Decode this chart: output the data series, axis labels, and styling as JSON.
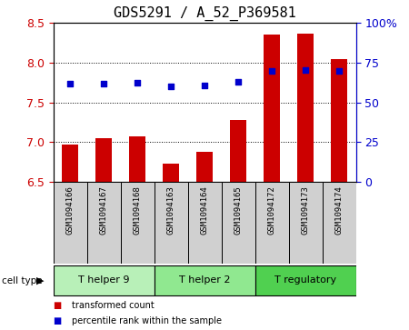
{
  "title": "GDS5291 / A_52_P369581",
  "samples": [
    "GSM1094166",
    "GSM1094167",
    "GSM1094168",
    "GSM1094163",
    "GSM1094164",
    "GSM1094165",
    "GSM1094172",
    "GSM1094173",
    "GSM1094174"
  ],
  "bar_values": [
    6.97,
    7.05,
    7.07,
    6.73,
    6.88,
    7.28,
    8.35,
    8.37,
    8.05
  ],
  "bar_bottom": 6.5,
  "scatter_values": [
    7.73,
    7.73,
    7.75,
    7.7,
    7.71,
    7.76,
    7.9,
    7.91,
    7.9
  ],
  "ylim": [
    6.5,
    8.5
  ],
  "yticks": [
    6.5,
    7.0,
    7.5,
    8.0,
    8.5
  ],
  "right_yticks": [
    0,
    25,
    50,
    75,
    100
  ],
  "right_ylabels": [
    "0",
    "25",
    "50",
    "75",
    "100%"
  ],
  "cell_groups": [
    {
      "label": "T helper 9",
      "start": 0,
      "end": 3,
      "color": "#b8f0b8"
    },
    {
      "label": "T helper 2",
      "start": 3,
      "end": 6,
      "color": "#90e890"
    },
    {
      "label": "T regulatory",
      "start": 6,
      "end": 9,
      "color": "#50d050"
    }
  ],
  "bar_color": "#cc0000",
  "scatter_color": "#0000cc",
  "background_color": "#ffffff",
  "sample_bg_color": "#d0d0d0",
  "ylabel_color": "#cc0000",
  "right_ylabel_color": "#0000cc",
  "legend_items": [
    {
      "color": "#cc0000",
      "label": "transformed count"
    },
    {
      "color": "#0000cc",
      "label": "percentile rank within the sample"
    }
  ]
}
